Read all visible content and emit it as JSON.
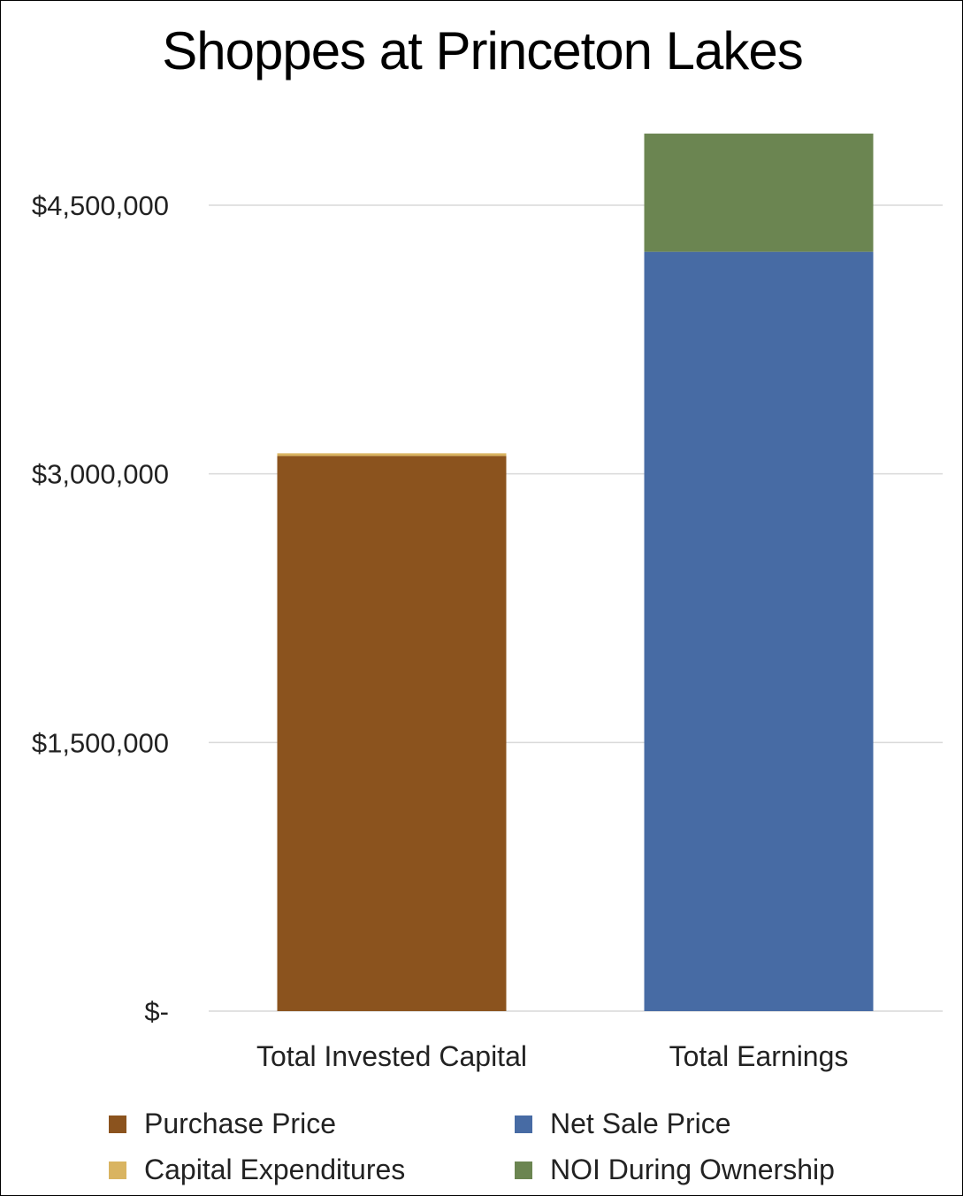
{
  "chart_data": {
    "type": "bar",
    "stacked": true,
    "title": "Shoppes at Princeton Lakes",
    "categories": [
      "Total Invested Capital",
      "Total Earnings"
    ],
    "series": [
      {
        "name": "Purchase Price",
        "color": "#8B531E",
        "values": [
          3100000,
          0
        ]
      },
      {
        "name": "Capital Expenditures",
        "color": "#D9B461",
        "values": [
          15000,
          0
        ]
      },
      {
        "name": "Net Sale Price",
        "color": "#476BA4",
        "values": [
          0,
          4240000
        ]
      },
      {
        "name": "NOI During Ownership",
        "color": "#6B8551",
        "values": [
          0,
          660000
        ]
      }
    ],
    "yticks": [
      0,
      1500000,
      3000000,
      4500000
    ],
    "ytick_labels": [
      "$-",
      "$1,500,000",
      "$3,000,000",
      "$4,500,000"
    ],
    "ylim": [
      0,
      4900000
    ],
    "grid": true,
    "legend_position": "bottom"
  }
}
